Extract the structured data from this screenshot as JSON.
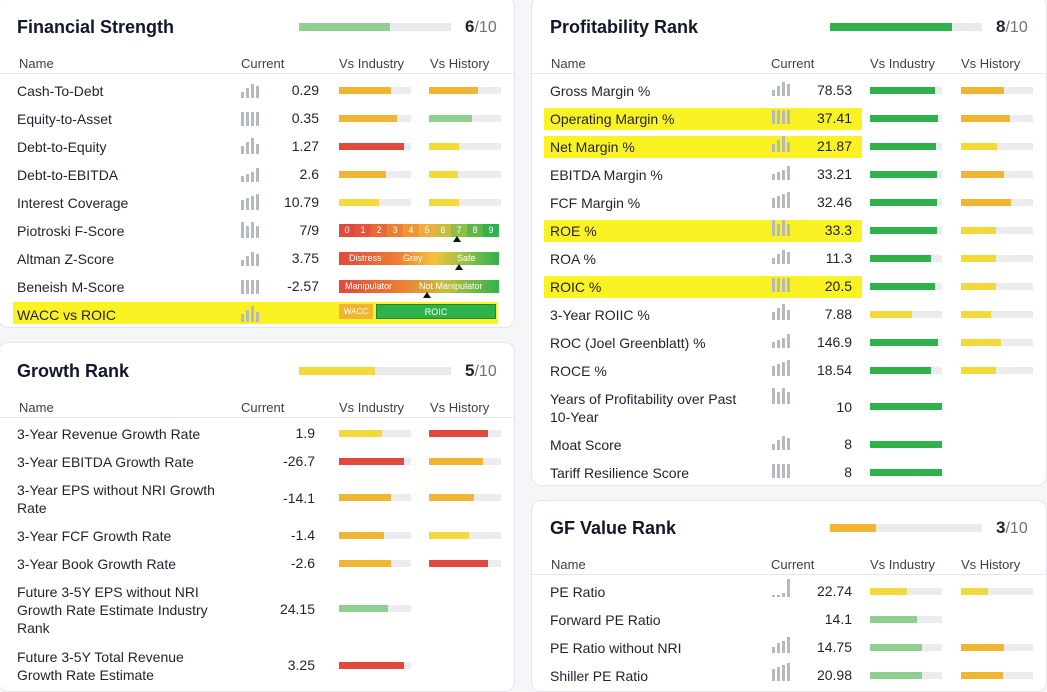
{
  "colors": {
    "green": "#2fb24c",
    "lightgreen": "#8fcf8f",
    "yellow": "#f4d93a",
    "orange": "#f0b533",
    "red": "#e0493d",
    "highlight": "#fbf224"
  },
  "financial": {
    "title": "Financial Strength",
    "score": "6",
    "max": "/10",
    "score_fraction": 0.6,
    "columns": {
      "name": "Name",
      "current": "Current",
      "industry": "Vs Industry",
      "history": "Vs History"
    },
    "rows": [
      {
        "name": "Cash-To-Debt",
        "value": "0.29",
        "ind": 0.72,
        "indc": "#f0b533",
        "his": 0.68,
        "hisc": "#f0b533"
      },
      {
        "name": "Equity-to-Asset",
        "value": "0.35",
        "ind": 0.8,
        "indc": "#f0b533",
        "his": 0.6,
        "hisc": "#8fcf8f"
      },
      {
        "name": "Debt-to-Equity",
        "value": "1.27",
        "ind": 0.9,
        "indc": "#e0493d",
        "his": 0.42,
        "hisc": "#f4d93a"
      },
      {
        "name": "Debt-to-EBITDA",
        "value": "2.6",
        "ind": 0.65,
        "indc": "#f0b533",
        "his": 0.4,
        "hisc": "#f4d93a"
      },
      {
        "name": "Interest Coverage",
        "value": "10.79",
        "ind": 0.55,
        "indc": "#f4d93a",
        "his": 0.42,
        "hisc": "#f4d93a"
      },
      {
        "name": "Piotroski F-Score",
        "value": "7/9"
      },
      {
        "name": "Altman Z-Score",
        "value": "3.75"
      },
      {
        "name": "Beneish M-Score",
        "value": "-2.57"
      },
      {
        "name": "WACC vs ROIC",
        "value": ""
      }
    ],
    "fscore_digits": [
      "0",
      "1",
      "2",
      "3",
      "4",
      "5",
      "6",
      "7",
      "8",
      "9"
    ],
    "zscore": {
      "distress": "Distress",
      "grey": "Grey",
      "safe": "Safe"
    },
    "mscore": {
      "manip": "Manipulator",
      "notmanip": "Not Manipulator"
    },
    "wacc": {
      "wacc": "WACC",
      "roic": "ROIC"
    }
  },
  "growth": {
    "title": "Growth Rank",
    "score": "5",
    "max": "/10",
    "score_fraction": 0.5,
    "columns": {
      "name": "Name",
      "current": "Current",
      "industry": "Vs Industry",
      "history": "Vs History"
    },
    "rows": [
      {
        "name": "3-Year Revenue Growth Rate",
        "value": "1.9",
        "ind": 0.6,
        "indc": "#f4d93a",
        "his": 0.82,
        "hisc": "#e0493d"
      },
      {
        "name": "3-Year EBITDA Growth Rate",
        "value": "-26.7",
        "ind": 0.9,
        "indc": "#e0493d",
        "his": 0.75,
        "hisc": "#f0b533"
      },
      {
        "name": "3-Year EPS without NRI Growth Rate",
        "value": "-14.1",
        "ind": 0.72,
        "indc": "#f0b533",
        "his": 0.62,
        "hisc": "#f0b533"
      },
      {
        "name": "3-Year FCF Growth Rate",
        "value": "-1.4",
        "ind": 0.62,
        "indc": "#f0b533",
        "his": 0.55,
        "hisc": "#f4d93a"
      },
      {
        "name": "3-Year Book Growth Rate",
        "value": "-2.6",
        "ind": 0.72,
        "indc": "#f0b533",
        "his": 0.82,
        "hisc": "#e0493d"
      },
      {
        "name": "Future 3-5Y EPS without NRI Growth Rate Estimate Industry Rank",
        "value": "24.15",
        "ind": 0.68,
        "indc": "#8fcf8f",
        "his": 0,
        "hisc": ""
      },
      {
        "name": "Future 3-5Y Total Revenue Growth Rate Estimate",
        "value": "3.25",
        "ind": 0.9,
        "indc": "#e0493d",
        "his": 0,
        "hisc": ""
      }
    ]
  },
  "profit": {
    "title": "Profitability Rank",
    "score": "8",
    "max": "/10",
    "score_fraction": 0.8,
    "columns": {
      "name": "Name",
      "current": "Current",
      "industry": "Vs Industry",
      "history": "Vs History"
    },
    "rows": [
      {
        "name": "Gross Margin %",
        "value": "78.53",
        "ind": 0.9,
        "indc": "#2fb24c",
        "his": 0.6,
        "hisc": "#f0b533"
      },
      {
        "name": "Operating Margin %",
        "value": "37.41",
        "ind": 0.95,
        "indc": "#2fb24c",
        "his": 0.68,
        "hisc": "#f0b533",
        "hl": true
      },
      {
        "name": "Net Margin %",
        "value": "21.87",
        "ind": 0.92,
        "indc": "#2fb24c",
        "his": 0.5,
        "hisc": "#f4d93a",
        "hl": true
      },
      {
        "name": "EBITDA Margin %",
        "value": "33.21",
        "ind": 0.93,
        "indc": "#2fb24c",
        "his": 0.6,
        "hisc": "#f0b533"
      },
      {
        "name": "FCF Margin %",
        "value": "32.46",
        "ind": 0.93,
        "indc": "#2fb24c",
        "his": 0.7,
        "hisc": "#f0b533"
      },
      {
        "name": "ROE %",
        "value": "33.3",
        "ind": 0.93,
        "indc": "#2fb24c",
        "his": 0.48,
        "hisc": "#f4d93a",
        "hl": true
      },
      {
        "name": "ROA %",
        "value": "11.3",
        "ind": 0.85,
        "indc": "#2fb24c",
        "his": 0.48,
        "hisc": "#f4d93a"
      },
      {
        "name": "ROIC %",
        "value": "20.5",
        "ind": 0.9,
        "indc": "#2fb24c",
        "his": 0.48,
        "hisc": "#f4d93a",
        "hl": true
      },
      {
        "name": "3-Year ROIIC %",
        "value": "7.88",
        "ind": 0.58,
        "indc": "#f4d93a",
        "his": 0.42,
        "hisc": "#f4d93a"
      },
      {
        "name": "ROC (Joel Greenblatt) %",
        "value": "146.9",
        "ind": 0.95,
        "indc": "#2fb24c",
        "his": 0.55,
        "hisc": "#f4d93a"
      },
      {
        "name": "ROCE %",
        "value": "18.54",
        "ind": 0.85,
        "indc": "#2fb24c",
        "his": 0.48,
        "hisc": "#f4d93a"
      },
      {
        "name": "Years of Profitability over Past 10-Year",
        "value": "10",
        "ind": 1.0,
        "indc": "#2fb24c",
        "his": 0,
        "hisc": ""
      },
      {
        "name": "Moat Score",
        "value": "8",
        "ind": 1.0,
        "indc": "#2fb24c",
        "his": 0,
        "hisc": ""
      },
      {
        "name": "Tariff Resilience Score",
        "value": "8",
        "ind": 1.0,
        "indc": "#2fb24c",
        "his": 0,
        "hisc": ""
      }
    ]
  },
  "gfvalue": {
    "title": "GF Value Rank",
    "score": "3",
    "max": "/10",
    "score_fraction": 0.3,
    "columns": {
      "name": "Name",
      "current": "Current",
      "industry": "Vs Industry",
      "history": "Vs History"
    },
    "rows": [
      {
        "name": "PE Ratio",
        "value": "22.74",
        "ind": 0.52,
        "indc": "#f4d93a",
        "his": 0.38,
        "hisc": "#f4d93a"
      },
      {
        "name": "Forward PE Ratio",
        "value": "14.1",
        "ind": 0.65,
        "indc": "#8fcf8f",
        "his": 0,
        "hisc": ""
      },
      {
        "name": "PE Ratio without NRI",
        "value": "14.75",
        "ind": 0.72,
        "indc": "#8fcf8f",
        "his": 0.6,
        "hisc": "#f0b533"
      },
      {
        "name": "Shiller PE Ratio",
        "value": "20.98",
        "ind": 0.72,
        "indc": "#8fcf8f",
        "his": 0.58,
        "hisc": "#f0b533"
      }
    ]
  }
}
